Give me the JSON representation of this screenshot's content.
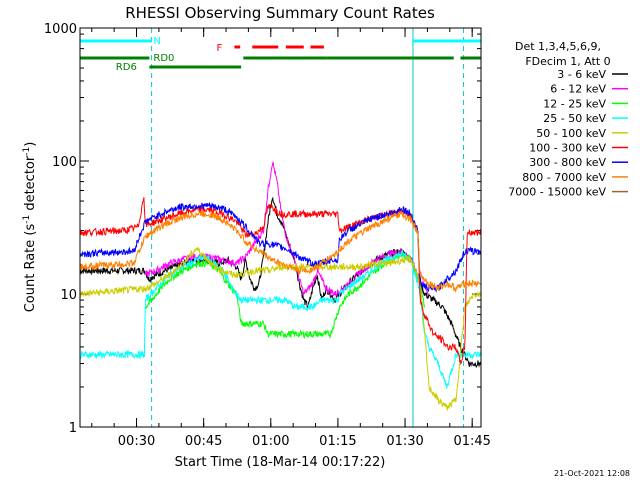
{
  "chart_data": {
    "type": "line",
    "title": "RHESSI Observing Summary Count Rates",
    "xlabel": "Start Time (18-Mar-14 00:17:22)",
    "ylabel_main": "Count Rate (s",
    "ylabel_sup1": "-1",
    "ylabel_mid": " detector",
    "ylabel_sup2": "-1",
    "ylabel_end": ")",
    "y_scale": "log",
    "ylim": [
      1,
      1000
    ],
    "xlim_minutes": [
      0,
      89.6
    ],
    "y_ticks": [
      {
        "label": "1",
        "value": 1
      },
      {
        "label": "10",
        "value": 10
      },
      {
        "label": "100",
        "value": 100
      },
      {
        "label": "1000",
        "value": 1000
      }
    ],
    "x_ticks": [
      {
        "label": "00:30",
        "minutes": 12.63
      },
      {
        "label": "00:45",
        "minutes": 27.63
      },
      {
        "label": "01:00",
        "minutes": 42.63
      },
      {
        "label": "01:15",
        "minutes": 57.63
      },
      {
        "label": "01:30",
        "minutes": 72.63
      },
      {
        "label": "01:45",
        "minutes": 87.63
      }
    ],
    "legend_header": [
      "Det 1,3,4,5,6,9,",
      "FDecim 1, Att 0"
    ],
    "series": [
      {
        "name": "3 - 6 keV",
        "color": "#000000",
        "points": [
          [
            0,
            15
          ],
          [
            14.6,
            15
          ],
          [
            15.3,
            13
          ],
          [
            19,
            15
          ],
          [
            25,
            18
          ],
          [
            29,
            18
          ],
          [
            31,
            17
          ],
          [
            33,
            18
          ],
          [
            35,
            16
          ],
          [
            36,
            13
          ],
          [
            37,
            18
          ],
          [
            38,
            13
          ],
          [
            39,
            11
          ],
          [
            40,
            12
          ],
          [
            41,
            19
          ],
          [
            42,
            35
          ],
          [
            43,
            55
          ],
          [
            44,
            40
          ],
          [
            45,
            35
          ],
          [
            46,
            28
          ],
          [
            47,
            22
          ],
          [
            48,
            18
          ],
          [
            49,
            12
          ],
          [
            50,
            9
          ],
          [
            51,
            8
          ],
          [
            52,
            11
          ],
          [
            53,
            14
          ],
          [
            54,
            9
          ],
          [
            55,
            11
          ],
          [
            56,
            10
          ],
          [
            57,
            9
          ],
          [
            58,
            10
          ],
          [
            60,
            12
          ],
          [
            63,
            15
          ],
          [
            66,
            18
          ],
          [
            69,
            20
          ],
          [
            72,
            21
          ],
          [
            74,
            18
          ],
          [
            75,
            15
          ],
          [
            76,
            12
          ],
          [
            77,
            10
          ],
          [
            79,
            9
          ],
          [
            81,
            8
          ],
          [
            83,
            6
          ],
          [
            85,
            4
          ],
          [
            87,
            3
          ],
          [
            89.6,
            3
          ]
        ]
      },
      {
        "name": "6 - 12 keV",
        "color": "#ff00ff",
        "points": [
          [
            14.6,
            14
          ],
          [
            17,
            15
          ],
          [
            20,
            17
          ],
          [
            25,
            19
          ],
          [
            29,
            19
          ],
          [
            32,
            18
          ],
          [
            35,
            17
          ],
          [
            37,
            19
          ],
          [
            39,
            24
          ],
          [
            41,
            30
          ],
          [
            42,
            60
          ],
          [
            43,
            100
          ],
          [
            44,
            70
          ],
          [
            45,
            40
          ],
          [
            46,
            28
          ],
          [
            47,
            22
          ],
          [
            48,
            18
          ],
          [
            49,
            13
          ],
          [
            50,
            10
          ],
          [
            52,
            12
          ],
          [
            53,
            15
          ],
          [
            55,
            11
          ],
          [
            57,
            10
          ],
          [
            60,
            12
          ],
          [
            63,
            15
          ],
          [
            66,
            18
          ],
          [
            69,
            20
          ],
          [
            72,
            21
          ],
          [
            74,
            18
          ],
          [
            76,
            13
          ],
          [
            78,
            10
          ]
        ]
      },
      {
        "name": "12 - 25 keV",
        "color": "#00ff00",
        "points": [
          [
            14.6,
            8
          ],
          [
            16,
            9
          ],
          [
            18,
            11
          ],
          [
            20,
            13
          ],
          [
            23,
            15
          ],
          [
            26,
            17
          ],
          [
            29,
            17
          ],
          [
            31,
            15
          ],
          [
            33,
            12
          ],
          [
            35,
            10
          ],
          [
            36,
            6
          ],
          [
            39,
            6
          ],
          [
            41,
            6
          ],
          [
            42,
            5
          ],
          [
            45,
            5
          ],
          [
            48,
            5
          ],
          [
            50,
            5
          ],
          [
            53,
            5
          ],
          [
            56,
            5
          ],
          [
            58,
            8
          ],
          [
            60,
            10
          ],
          [
            63,
            12
          ],
          [
            66,
            15
          ],
          [
            69,
            18
          ],
          [
            72,
            20
          ],
          [
            74,
            18
          ],
          [
            76,
            12
          ],
          [
            77,
            8
          ]
        ]
      },
      {
        "name": "25 - 50 keV",
        "color": "#00ffff",
        "points": [
          [
            0,
            3.5
          ],
          [
            14.4,
            3.5
          ],
          [
            14.6,
            9
          ],
          [
            17,
            11
          ],
          [
            20,
            14
          ],
          [
            23,
            16
          ],
          [
            26,
            18
          ],
          [
            28,
            19
          ],
          [
            30,
            17
          ],
          [
            32,
            15
          ],
          [
            34,
            11
          ],
          [
            36,
            9
          ],
          [
            38,
            9
          ],
          [
            40,
            9
          ],
          [
            42,
            9
          ],
          [
            44,
            9
          ],
          [
            46,
            9
          ],
          [
            48,
            8
          ],
          [
            50,
            8
          ],
          [
            52,
            8
          ],
          [
            54,
            9
          ],
          [
            56,
            9
          ],
          [
            57.6,
            9
          ],
          [
            58,
            10
          ],
          [
            61,
            12
          ],
          [
            64,
            14
          ],
          [
            67,
            17
          ],
          [
            70,
            19
          ],
          [
            72,
            20
          ],
          [
            74,
            18
          ],
          [
            75,
            14
          ],
          [
            76,
            10
          ],
          [
            77,
            5
          ],
          [
            78,
            4
          ],
          [
            80,
            3
          ],
          [
            82,
            2
          ],
          [
            84,
            3.5
          ],
          [
            86,
            3.5
          ],
          [
            87,
            3.5
          ],
          [
            89.6,
            3.5
          ]
        ]
      },
      {
        "name": "50 - 100 keV",
        "color": "#cccc00",
        "points": [
          [
            0,
            10
          ],
          [
            14.6,
            11
          ],
          [
            17,
            12
          ],
          [
            20,
            14
          ],
          [
            23,
            17
          ],
          [
            26,
            22
          ],
          [
            28,
            19
          ],
          [
            30,
            16
          ],
          [
            32,
            15
          ],
          [
            34,
            14
          ],
          [
            36,
            14
          ],
          [
            39,
            15
          ],
          [
            42,
            15
          ],
          [
            45,
            16
          ],
          [
            48,
            16
          ],
          [
            51,
            16
          ],
          [
            54,
            16
          ],
          [
            57,
            16
          ],
          [
            60,
            16
          ],
          [
            63,
            16
          ],
          [
            66,
            17
          ],
          [
            69,
            17
          ],
          [
            72,
            18
          ],
          [
            74,
            18
          ],
          [
            75,
            15
          ],
          [
            76,
            12
          ],
          [
            77,
            5
          ],
          [
            78,
            2
          ],
          [
            80,
            1.6
          ],
          [
            82,
            1.4
          ],
          [
            84,
            1.6
          ],
          [
            86,
            8
          ],
          [
            88,
            10
          ],
          [
            89.6,
            10
          ]
        ]
      },
      {
        "name": "100 - 300 keV",
        "color": "#ff0000",
        "points": [
          [
            0,
            29
          ],
          [
            10,
            30
          ],
          [
            13,
            32
          ],
          [
            14.3,
            55
          ],
          [
            14.6,
            33
          ],
          [
            18,
            36
          ],
          [
            22,
            40
          ],
          [
            26,
            43
          ],
          [
            29,
            43
          ],
          [
            32,
            40
          ],
          [
            35,
            35
          ],
          [
            37,
            28
          ],
          [
            39,
            28
          ],
          [
            41,
            32
          ],
          [
            42,
            45
          ],
          [
            43,
            45
          ],
          [
            44,
            42
          ],
          [
            45,
            40
          ],
          [
            47,
            40
          ],
          [
            50,
            40
          ],
          [
            53,
            40
          ],
          [
            56,
            40
          ],
          [
            57.6,
            40
          ],
          [
            58,
            30
          ],
          [
            60,
            32
          ],
          [
            63,
            35
          ],
          [
            66,
            38
          ],
          [
            69,
            40
          ],
          [
            72,
            42
          ],
          [
            74,
            38
          ],
          [
            75.5,
            30
          ],
          [
            76,
            9
          ],
          [
            77,
            7
          ],
          [
            79,
            5
          ],
          [
            81,
            4.5
          ],
          [
            82,
            4
          ],
          [
            84,
            4
          ],
          [
            85,
            3
          ],
          [
            86,
            4
          ],
          [
            86.5,
            29
          ],
          [
            89.6,
            29
          ]
        ]
      },
      {
        "name": "300 - 800 keV",
        "color": "#0000ff",
        "points": [
          [
            0,
            20
          ],
          [
            12,
            21
          ],
          [
            14.6,
            35
          ],
          [
            18,
            40
          ],
          [
            22,
            45
          ],
          [
            26,
            46
          ],
          [
            29,
            46
          ],
          [
            32,
            44
          ],
          [
            35,
            38
          ],
          [
            37,
            32
          ],
          [
            39,
            27
          ],
          [
            40,
            24
          ],
          [
            42,
            24
          ],
          [
            44,
            23
          ],
          [
            46,
            22
          ],
          [
            48,
            20
          ],
          [
            50,
            18
          ],
          [
            52,
            17
          ],
          [
            54,
            17
          ],
          [
            56,
            18
          ],
          [
            57.6,
            18
          ],
          [
            58,
            26
          ],
          [
            60,
            30
          ],
          [
            63,
            34
          ],
          [
            66,
            38
          ],
          [
            69,
            40
          ],
          [
            72,
            44
          ],
          [
            74,
            40
          ],
          [
            75.5,
            30
          ],
          [
            76,
            12
          ],
          [
            78,
            11
          ],
          [
            80,
            11
          ],
          [
            82,
            13
          ],
          [
            84,
            15
          ],
          [
            86,
            21
          ],
          [
            89.6,
            21
          ]
        ]
      },
      {
        "name": "800 - 7000 keV",
        "color": "#ff8000",
        "points": [
          [
            0,
            16
          ],
          [
            12,
            17
          ],
          [
            14.6,
            27
          ],
          [
            18,
            32
          ],
          [
            22,
            37
          ],
          [
            26,
            40
          ],
          [
            29,
            40
          ],
          [
            32,
            36
          ],
          [
            35,
            30
          ],
          [
            37,
            25
          ],
          [
            39,
            22
          ],
          [
            41,
            20
          ],
          [
            43,
            18
          ],
          [
            45,
            17
          ],
          [
            47,
            16
          ],
          [
            49,
            15
          ],
          [
            51,
            15
          ],
          [
            53,
            16
          ],
          [
            55,
            18
          ],
          [
            57,
            20
          ],
          [
            60,
            25
          ],
          [
            63,
            29
          ],
          [
            66,
            33
          ],
          [
            69,
            37
          ],
          [
            72,
            40
          ],
          [
            74,
            36
          ],
          [
            75.5,
            28
          ],
          [
            76,
            14
          ],
          [
            78,
            12
          ],
          [
            80,
            11
          ],
          [
            82,
            12
          ],
          [
            84,
            11
          ],
          [
            86,
            12
          ],
          [
            89.6,
            12
          ]
        ]
      },
      {
        "name": "7000 - 15000 keV",
        "color": "#996633",
        "points": []
      }
    ],
    "attenuator_bars": [
      {
        "label": "N",
        "color": "#00ffff",
        "row": 1,
        "segments": [
          [
            0,
            16
          ],
          [
            74.4,
            89.6
          ]
        ]
      },
      {
        "label": "RD0",
        "color": "#008000",
        "row": 2,
        "segments": [
          [
            0,
            15.5
          ],
          [
            36.5,
            55
          ],
          [
            55,
            83.5
          ],
          [
            85,
            89.6
          ]
        ]
      },
      {
        "label": "RD6",
        "color": "#008000",
        "row": 3,
        "segments": [
          [
            15.5,
            36
          ]
        ]
      },
      {
        "label": "F",
        "color": "#ff0000",
        "row": 0,
        "segments": [
          [
            34.5,
            35.8
          ],
          [
            38.5,
            44.3
          ],
          [
            46,
            50
          ],
          [
            51.5,
            54.5
          ]
        ]
      }
    ],
    "vertical_markers": [
      {
        "minutes": 16.0,
        "color": "#00cccc",
        "style": "dashed"
      },
      {
        "minutes": 74.4,
        "color": "#00cccc",
        "style": "solid"
      },
      {
        "minutes": 85.7,
        "color": "#00cccc",
        "style": "dashed"
      }
    ]
  },
  "footer": {
    "timestamp": "21-Oct-2021 12:08"
  }
}
